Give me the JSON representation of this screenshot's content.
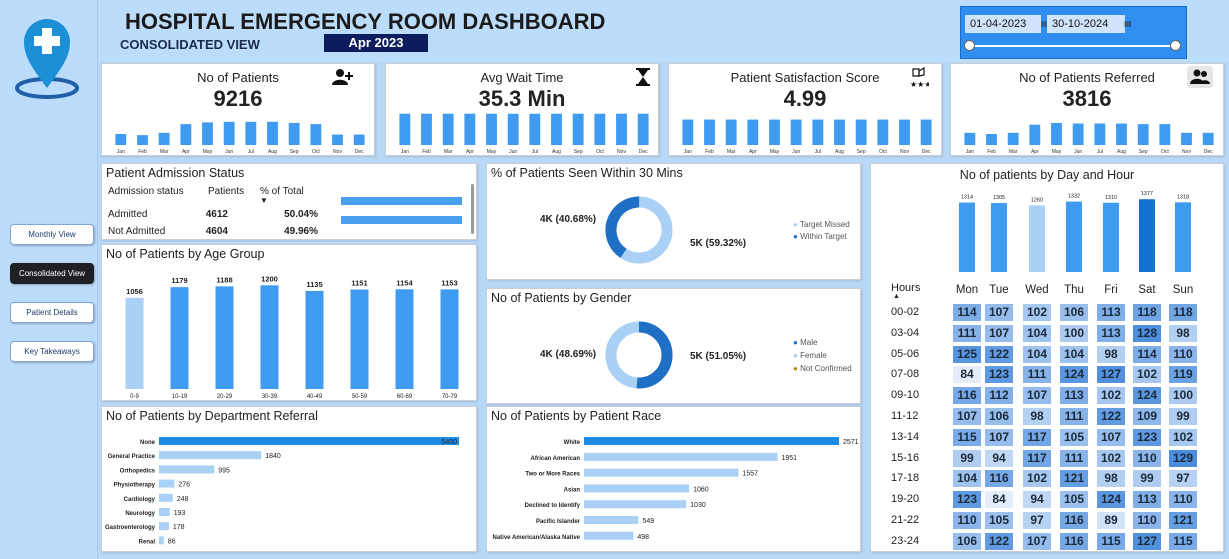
{
  "header": {
    "title": "HOSPITAL EMERGENCY ROOM DASHBOARD",
    "subtitle": "CONSOLIDATED VIEW",
    "period": "Apr 2023",
    "date_from": "01-04-2023",
    "date_to": "30-10-2024"
  },
  "nav": {
    "monthly": "Monthly View",
    "consolidated": "Consolidated View",
    "patient_details": "Patient Details",
    "key_takeaways": "Key Takeaways"
  },
  "months": [
    "Jan",
    "Feb",
    "Mar",
    "Apr",
    "May",
    "Jun",
    "Jul",
    "Aug",
    "Sep",
    "Oct",
    "Nov",
    "Dec"
  ],
  "kpis": [
    {
      "title": "No of Patients",
      "value": "9216",
      "icon": "add-user-icon",
      "bars": [
        0.38,
        0.34,
        0.42,
        0.72,
        0.78,
        0.8,
        0.8,
        0.8,
        0.76,
        0.72,
        0.36,
        0.36
      ]
    },
    {
      "title": "Avg Wait Time",
      "value": "35.3 Min",
      "icon": "hourglass-icon",
      "bars": [
        0.92,
        0.92,
        0.92,
        0.92,
        0.92,
        0.92,
        0.92,
        0.92,
        0.92,
        0.92,
        0.92,
        0.92
      ]
    },
    {
      "title": "Patient Satisfaction Score",
      "value": "4.99",
      "icon": "rating-stars-icon",
      "bars": [
        0.82,
        0.82,
        0.82,
        0.82,
        0.82,
        0.82,
        0.82,
        0.82,
        0.82,
        0.82,
        0.82,
        0.82
      ]
    },
    {
      "title": "No of Patients Referred",
      "value": "3816",
      "icon": "people-icon",
      "bars": [
        0.42,
        0.38,
        0.42,
        0.7,
        0.76,
        0.74,
        0.74,
        0.74,
        0.72,
        0.72,
        0.42,
        0.42
      ]
    }
  ],
  "admission": {
    "title": "Patient Admission Status",
    "columns": [
      "Admission status",
      "Patients",
      "% of Total"
    ],
    "rows": [
      {
        "status": "Admitted",
        "patients": "4612",
        "pct": "50.04%",
        "frac": 0.5004
      },
      {
        "status": "Not Admitted",
        "patients": "4604",
        "pct": "49.96%",
        "frac": 0.4996
      }
    ]
  },
  "seen30": {
    "title": "% of Patients Seen Within 30 Mins",
    "left_label": "4K (40.68%)",
    "right_label": "5K (59.32%)",
    "legend": [
      "Target Missed",
      "Within Target"
    ],
    "fraction": 0.4068,
    "colors": {
      "dark": "#1f6fc5",
      "light": "#a9d0f5"
    }
  },
  "gender": {
    "title": "No of Patients by Gender",
    "left_label": "4K (48.69%)",
    "right_label": "5K (51.05%)",
    "legend": [
      "Male",
      "Female",
      "Not Confirmed"
    ],
    "fraction": 0.5105,
    "colors": {
      "male": "#1f6fc5",
      "female": "#a9d0f5",
      "unconfirmed": "#b8860b"
    }
  },
  "dayhour": {
    "title": "No of patients by Day and Hour",
    "hours_label": "Hours",
    "days": [
      "Mon",
      "Tue",
      "Wed",
      "Thu",
      "Fri",
      "Sat",
      "Sun"
    ],
    "day_totals": [
      1314,
      1305,
      1260,
      1332,
      1310,
      1377,
      1318
    ],
    "hours": [
      "00-02",
      "03-04",
      "05-06",
      "07-08",
      "09-10",
      "11-12",
      "13-14",
      "15-16",
      "17-18",
      "19-20",
      "21-22",
      "23-24"
    ],
    "matrix": [
      [
        114,
        107,
        102,
        106,
        113,
        118,
        118
      ],
      [
        111,
        107,
        104,
        100,
        113,
        128,
        98
      ],
      [
        125,
        122,
        104,
        104,
        98,
        114,
        110
      ],
      [
        84,
        123,
        111,
        124,
        127,
        102,
        119
      ],
      [
        116,
        112,
        107,
        113,
        102,
        124,
        100
      ],
      [
        107,
        106,
        98,
        111,
        122,
        109,
        99
      ],
      [
        115,
        107,
        117,
        105,
        107,
        123,
        102
      ],
      [
        99,
        94,
        117,
        111,
        102,
        110,
        129
      ],
      [
        104,
        116,
        102,
        121,
        98,
        99,
        97
      ],
      [
        123,
        84,
        94,
        105,
        124,
        113,
        110
      ],
      [
        110,
        105,
        97,
        116,
        89,
        110,
        121
      ],
      [
        106,
        122,
        107,
        116,
        115,
        127,
        115
      ]
    ]
  },
  "chart_data": [
    {
      "type": "bar",
      "title": "No of Patients by Age Group",
      "categories": [
        "0-9",
        "10-19",
        "20-29",
        "30-39",
        "40-49",
        "50-59",
        "60-69",
        "70-79"
      ],
      "values": [
        1056,
        1179,
        1188,
        1200,
        1135,
        1151,
        1154,
        1153
      ],
      "ylim": [
        0,
        1250
      ]
    },
    {
      "type": "bar",
      "orientation": "horizontal",
      "title": "No of Patients by Department Referral",
      "categories": [
        "None",
        "General Practice",
        "Orthopedics",
        "Physiotherapy",
        "Cardiology",
        "Neurology",
        "Gastroenterology",
        "Renal"
      ],
      "values": [
        5400,
        1840,
        995,
        276,
        248,
        193,
        178,
        86
      ]
    },
    {
      "type": "bar",
      "orientation": "horizontal",
      "title": "No of Patients by Patient Race",
      "categories": [
        "White",
        "African American",
        "Two or More Races",
        "Asian",
        "Declined to Identify",
        "Pacific Islander",
        "Native American/Alaska Native"
      ],
      "values": [
        2571,
        1951,
        1557,
        1060,
        1030,
        549,
        498
      ]
    },
    {
      "type": "bar",
      "title": "No of patients by Day and Hour",
      "categories": [
        "Mon",
        "Tue",
        "Wed",
        "Thu",
        "Fri",
        "Sat",
        "Sun"
      ],
      "values": [
        1314,
        1305,
        1260,
        1332,
        1310,
        1377,
        1318
      ]
    }
  ]
}
